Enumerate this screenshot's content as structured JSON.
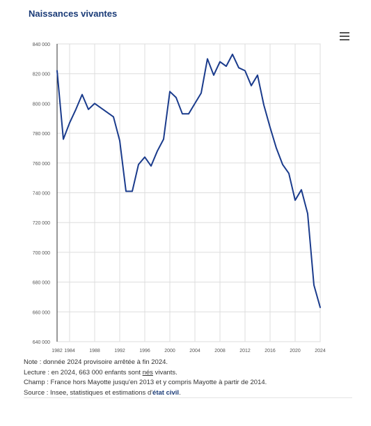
{
  "header": {
    "title": "Naissances vivantes"
  },
  "menu": {
    "icon": "hamburger-menu-icon"
  },
  "chart_data": {
    "type": "line",
    "title": "Naissances vivantes",
    "xlabel": "",
    "ylabel": "",
    "x": [
      1982,
      1983,
      1984,
      1985,
      1986,
      1987,
      1988,
      1989,
      1990,
      1991,
      1992,
      1993,
      1994,
      1995,
      1996,
      1997,
      1998,
      1999,
      2000,
      2001,
      2002,
      2003,
      2004,
      2005,
      2006,
      2007,
      2008,
      2009,
      2010,
      2011,
      2012,
      2013,
      2014,
      2015,
      2016,
      2017,
      2018,
      2019,
      2020,
      2021,
      2022,
      2023,
      2024
    ],
    "values": [
      822000,
      776000,
      787000,
      796000,
      806000,
      796000,
      800000,
      797000,
      794000,
      791000,
      775000,
      741000,
      741000,
      759000,
      764000,
      758000,
      768000,
      776000,
      808000,
      804000,
      793000,
      793000,
      800000,
      807000,
      830000,
      819000,
      828000,
      825000,
      833000,
      824000,
      822000,
      812000,
      819000,
      799000,
      784000,
      770000,
      759000,
      753000,
      735000,
      742000,
      726000,
      678000,
      663000
    ],
    "series_color": "#1a3b8c",
    "xlim": [
      1982,
      2024
    ],
    "ylim": [
      640000,
      840000
    ],
    "yticks": [
      640000,
      660000,
      680000,
      700000,
      720000,
      740000,
      760000,
      780000,
      800000,
      820000,
      840000
    ],
    "ytick_labels": [
      "640 000",
      "660 000",
      "680 000",
      "700 000",
      "720 000",
      "740 000",
      "760 000",
      "780 000",
      "800 000",
      "820 000",
      "840 000"
    ],
    "xticks": [
      1982,
      1984,
      1988,
      1992,
      1996,
      2000,
      2004,
      2008,
      2012,
      2016,
      2020,
      2024
    ],
    "xtick_labels": [
      "1982",
      "1984",
      "1988",
      "1992",
      "1996",
      "2000",
      "2004",
      "2008",
      "2012",
      "2016",
      "2020",
      "2024"
    ],
    "grid": true
  },
  "notes": {
    "note": "Note : donnée 2024 provisoire arrêtée à fin 2024.",
    "lecture_prefix": "Lecture : en 2024, 663 000 enfants sont ",
    "lecture_link": "nés",
    "lecture_suffix": " vivants.",
    "champ": "Champ : France hors Mayotte jusqu'en 2013 et y compris Mayotte à partir de 2014.",
    "source_prefix": "Source : Insee, statistiques et estimations d'",
    "source_link": "état civil",
    "source_suffix": "."
  }
}
